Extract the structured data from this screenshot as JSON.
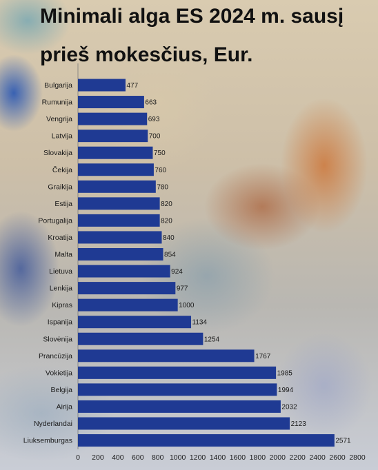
{
  "title": "Minimali alga ES 2024 m. sausį prieš mokesčius, Eur.",
  "colors": {
    "bar": "#1f3a93",
    "text": "#1a1a1a"
  },
  "chart_data": {
    "type": "bar",
    "orientation": "horizontal",
    "title": "Minimali alga ES 2024 m. sausį prieš mokesčius, Eur.",
    "categories": [
      "Bulgarija",
      "Rumunija",
      "Vengrija",
      "Latvija",
      "Slovakija",
      "Čekija",
      "Graikija",
      "Estija",
      "Portugalija",
      "Kroatija",
      "Malta",
      "Lietuva",
      "Lenkija",
      "Kipras",
      "Ispanija",
      "Slovėnija",
      "Prancūzija",
      "Vokietija",
      "Belgija",
      "Airija",
      "Nyderlandai",
      "Liuksemburgas"
    ],
    "values": [
      477,
      663,
      693,
      700,
      750,
      760,
      780,
      820,
      820,
      840,
      854,
      924,
      977,
      1000,
      1134,
      1254,
      1767,
      1985,
      1994,
      2032,
      2123,
      2571
    ],
    "xlim": [
      0,
      2800
    ],
    "xticks": [
      0,
      200,
      400,
      600,
      800,
      1000,
      1200,
      1400,
      1600,
      1800,
      2000,
      2200,
      2400,
      2600,
      2800
    ],
    "xlabel": "",
    "ylabel": "",
    "grid": false,
    "data_labels": true
  }
}
